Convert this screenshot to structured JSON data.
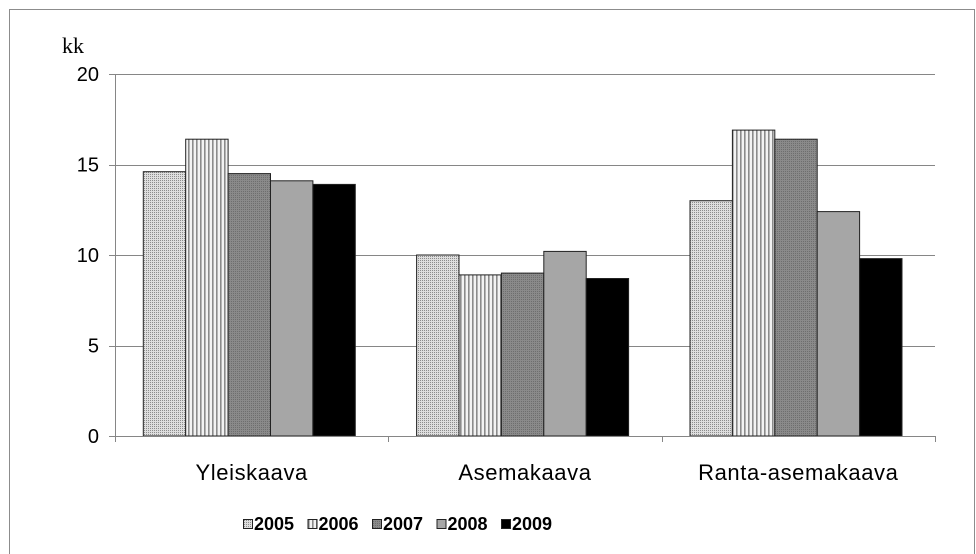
{
  "chart_data": {
    "type": "bar",
    "ylabel": "kk",
    "categories": [
      "Yleiskaava",
      "Asemakaava",
      "Ranta-asemakaava"
    ],
    "series": [
      {
        "name": "2005",
        "values": [
          14.6,
          10.0,
          13.0
        ],
        "color": "#dedede"
      },
      {
        "name": "2006",
        "values": [
          16.4,
          8.9,
          16.9
        ],
        "color": "#f2f2f2"
      },
      {
        "name": "2007",
        "values": [
          14.5,
          9.0,
          16.4
        ],
        "color": "#8a8a8a"
      },
      {
        "name": "2008",
        "values": [
          14.1,
          10.2,
          12.4
        ],
        "color": "#a6a6a6"
      },
      {
        "name": "2009",
        "values": [
          13.9,
          8.7,
          9.8
        ],
        "color": "#000000"
      }
    ],
    "ylim": [
      0,
      20
    ],
    "yticks": [
      0,
      5,
      10,
      15,
      20
    ],
    "grid": true,
    "legend": "bottom"
  }
}
